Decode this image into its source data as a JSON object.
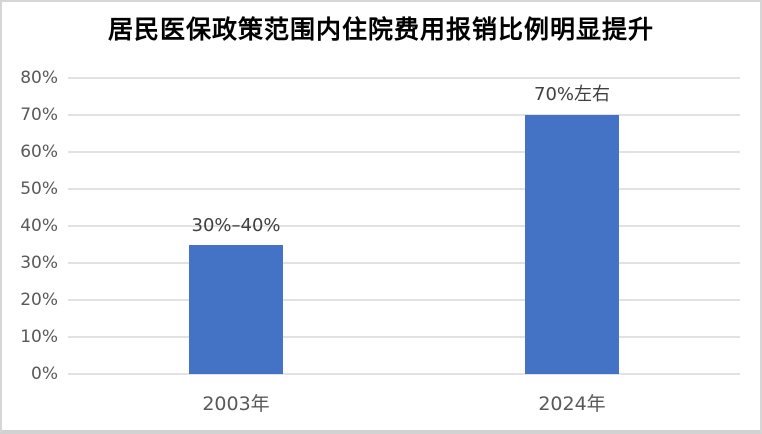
{
  "chart_data": {
    "type": "bar",
    "title": "居民医保政策范围内住院费用报销比例明显提升",
    "categories": [
      "2003年",
      "2024年"
    ],
    "values": [
      35,
      70
    ],
    "bar_labels": [
      "30%–40%",
      "70%左右"
    ],
    "xlabel": "",
    "ylabel": "",
    "ylim": [
      0,
      80
    ],
    "yticks": [
      0,
      10,
      20,
      30,
      40,
      50,
      60,
      70,
      80
    ],
    "ytick_labels": [
      "0%",
      "10%",
      "20%",
      "30%",
      "40%",
      "50%",
      "60%",
      "70%",
      "80%"
    ],
    "grid": true,
    "legend_position": "none",
    "colors": {
      "bar": "#4472c4",
      "gridline": "#e2e2e2",
      "tick_label": "#595959",
      "data_label": "#404040",
      "title": "#000000",
      "frame_border": "#d6d6d6",
      "background": "#ffffff"
    }
  }
}
